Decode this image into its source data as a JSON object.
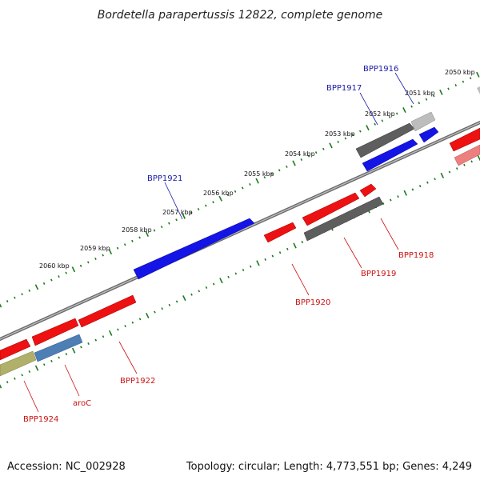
{
  "title": "Bordetella parapertussis 12822, complete genome",
  "footer": {
    "accession": "Accession: NC_002928",
    "topology": "Topology: circular; Length: 4,773,551 bp; Genes: 4,249"
  },
  "kbp_labels": [
    "2050 kbp",
    "2051 kbp",
    "2052 kbp",
    "2053 kbp",
    "2054 kbp",
    "2055 kbp",
    "2056 kbp",
    "2057 kbp",
    "2058 kbp",
    "2059 kbp",
    "2060 kbp"
  ],
  "gene_labels": {
    "forward": [
      "BPP1916",
      "BPP1917",
      "BPP1921"
    ],
    "reverse": [
      "BPP1918",
      "BPP1919",
      "BPP1920",
      "BPP1922",
      "aroC",
      "BPP1924"
    ]
  },
  "colors": {
    "forward_label": "#1a1aa8",
    "reverse_label": "#cc1111",
    "tick": "#1c7a1c",
    "backbone": "#777777",
    "blue_gene": "#1414e6",
    "red_gene": "#ee1111",
    "grey_gene": "#5e5e5e",
    "light_grey_gene": "#bdbdbd",
    "steel_gene": "#4d7fb5",
    "olive_gene": "#b0b06a",
    "pink_gene": "#ee7f7f"
  }
}
